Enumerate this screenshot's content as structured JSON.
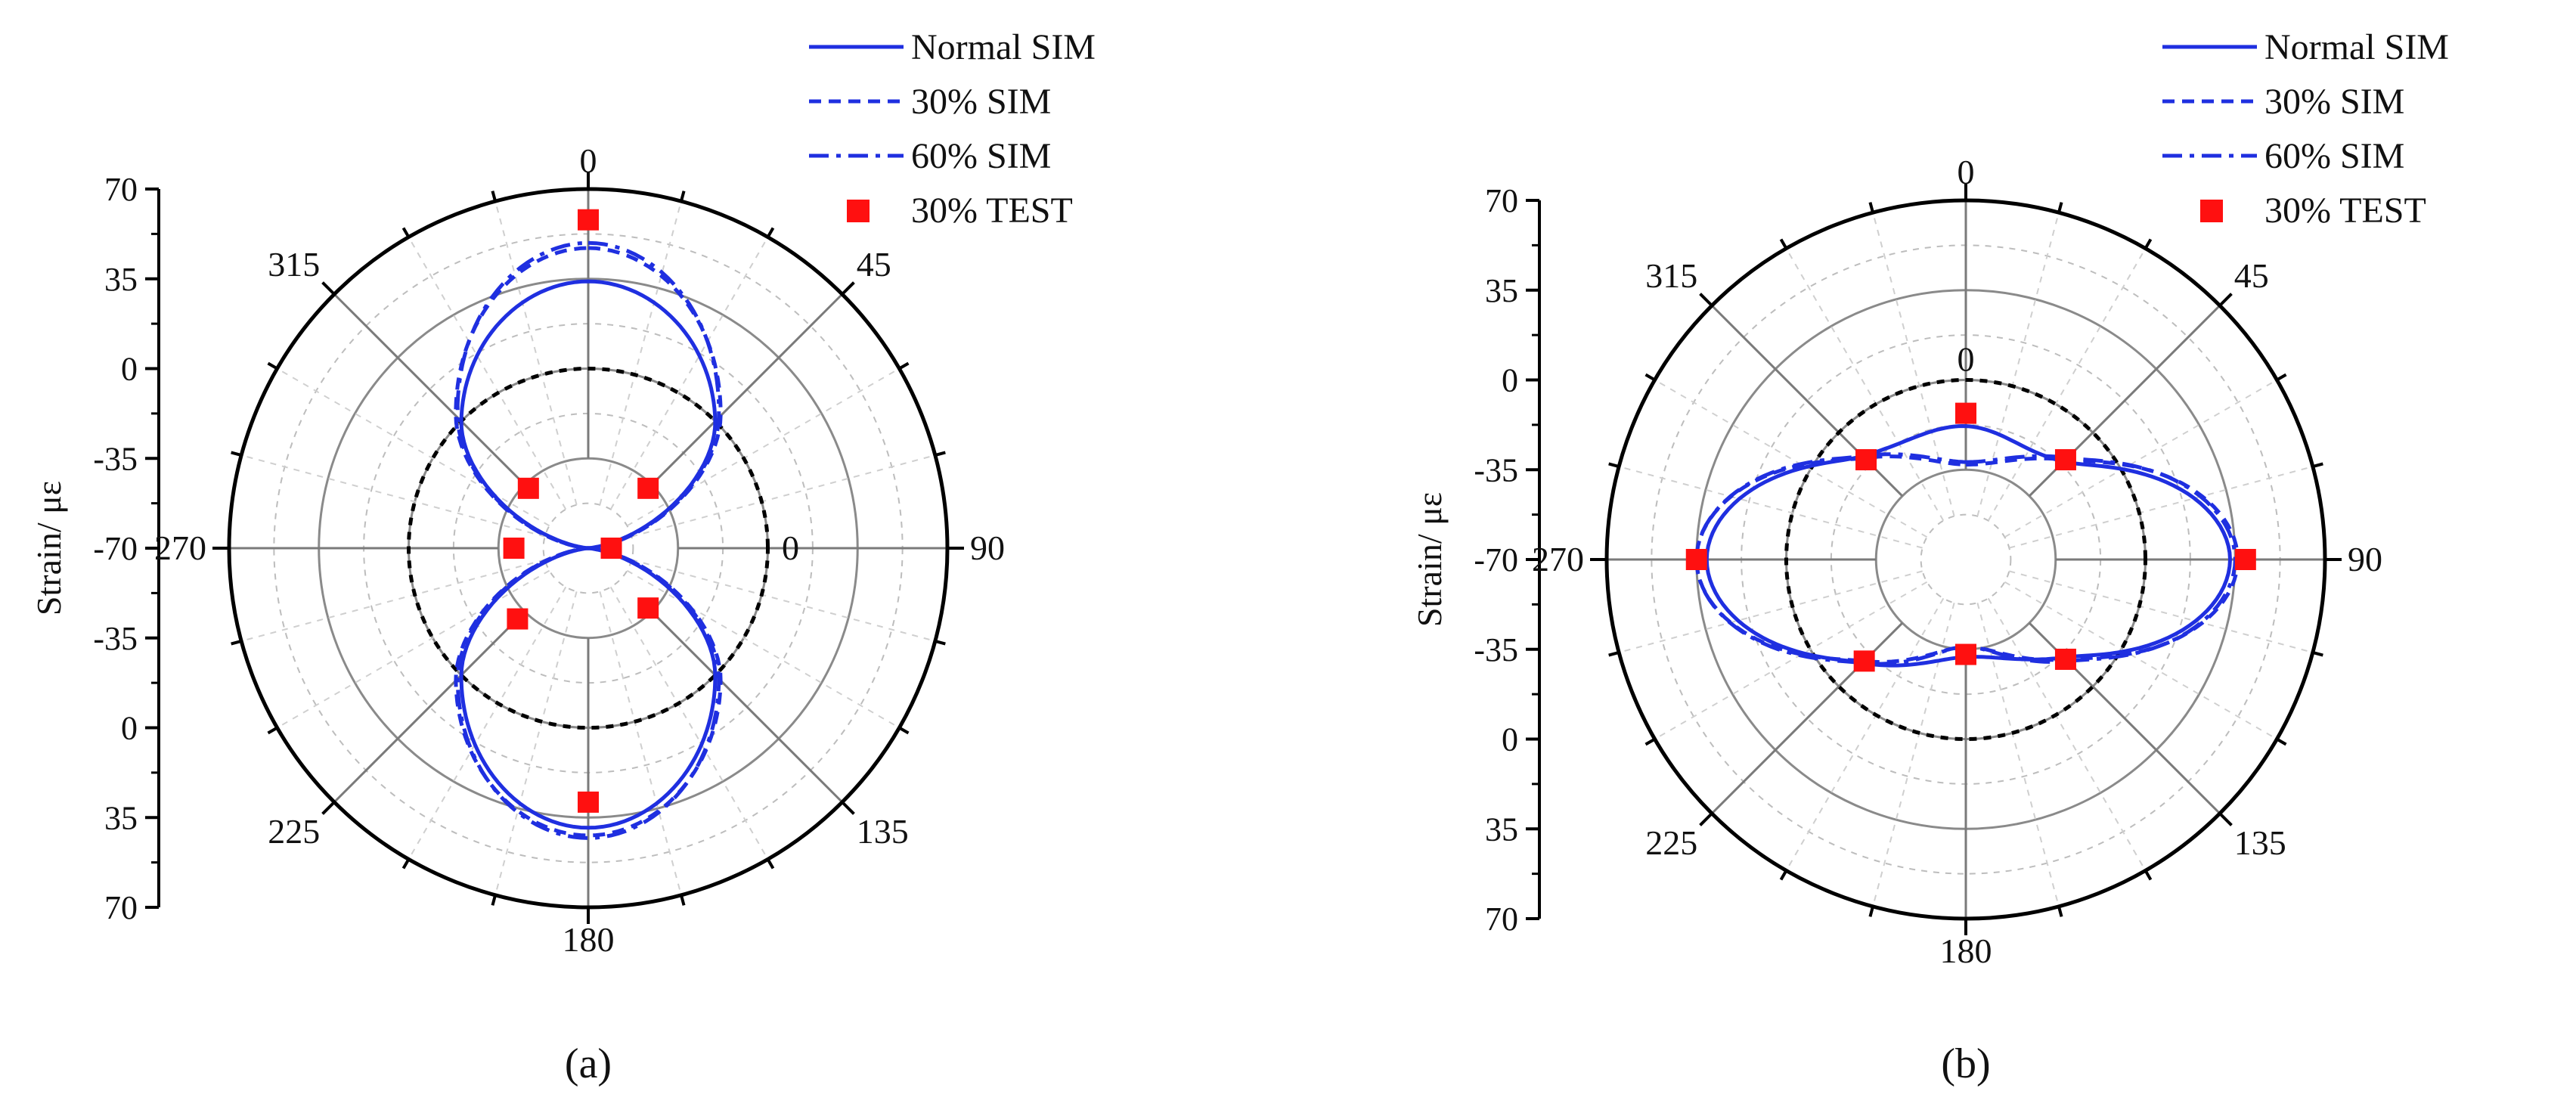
{
  "chart_data": [
    {
      "panel_label": "(a)",
      "type": "polar",
      "ylabel": "Strain/ με",
      "radial_tick_labels": [
        "70",
        "35",
        "0",
        "-35",
        "-70"
      ],
      "radial_range": [
        -70,
        70
      ],
      "angle_tick_labels": [
        {
          "angle": 0,
          "label": "0"
        },
        {
          "angle": 45,
          "label": "45"
        },
        {
          "angle": 90,
          "label": "90"
        },
        {
          "angle": 135,
          "label": "135"
        },
        {
          "angle": 180,
          "label": "180"
        },
        {
          "angle": 225,
          "label": "225"
        },
        {
          "angle": 270,
          "label": "270"
        },
        {
          "angle": 315,
          "label": "315"
        }
      ],
      "inner_zero_label": "0",
      "inner_zero_angle": 90,
      "legend": {
        "position": "top-right",
        "entries": [
          "Normal SIM",
          "30% SIM",
          "60% SIM",
          "30% TEST"
        ]
      },
      "series": [
        {
          "name": "Normal SIM",
          "style": "solid",
          "values_at": "every 45°",
          "values": [
            34,
            0,
            -72,
            0,
            39,
            0,
            -72,
            0
          ]
        },
        {
          "name": "30% SIM",
          "style": "dash",
          "values": [
            47,
            3,
            -70,
            3,
            42,
            3,
            -70,
            3
          ]
        },
        {
          "name": "60% SIM",
          "style": "dashdot",
          "values": [
            49,
            2,
            -70,
            2,
            43,
            2,
            -70,
            2
          ]
        },
        {
          "name": "30% TEST",
          "style": "square-marker",
          "points": [
            {
              "angle": 0,
              "value": 58
            },
            {
              "angle": 45,
              "value": -37
            },
            {
              "angle": 90,
              "value": -61
            },
            {
              "angle": 135,
              "value": -37
            },
            {
              "angle": 180,
              "value": 29
            },
            {
              "angle": 225,
              "value": -31
            },
            {
              "angle": 270,
              "value": -41
            },
            {
              "angle": 315,
              "value": -37
            }
          ]
        }
      ],
      "zero_circle": {
        "value": 0
      }
    },
    {
      "panel_label": "(b)",
      "type": "polar",
      "ylabel": "Strain/ με",
      "radial_tick_labels": [
        "70",
        "35",
        "0",
        "-35",
        "-70"
      ],
      "radial_range": [
        -70,
        70
      ],
      "angle_tick_labels": [
        {
          "angle": 0,
          "label": "0"
        },
        {
          "angle": 45,
          "label": "45"
        },
        {
          "angle": 90,
          "label": "90"
        },
        {
          "angle": 135,
          "label": "135"
        },
        {
          "angle": 180,
          "label": "180"
        },
        {
          "angle": 225,
          "label": "225"
        },
        {
          "angle": 270,
          "label": "270"
        },
        {
          "angle": 315,
          "label": "315"
        }
      ],
      "inner_zero_label": "0",
      "inner_zero_angle": 0,
      "legend": {
        "position": "top-right",
        "entries": [
          "Normal SIM",
          "30% SIM",
          "60% SIM",
          "30% TEST"
        ]
      },
      "series": [
        {
          "name": "Normal SIM",
          "style": "solid",
          "values_at": "every 45°",
          "values": [
            -18,
            -16,
            33,
            -16,
            -32,
            -13,
            31,
            -13
          ]
        },
        {
          "name": "30% SIM",
          "style": "dash",
          "values": [
            -33,
            -15,
            36,
            -15,
            -36,
            -14,
            35,
            -14
          ]
        },
        {
          "name": "60% SIM",
          "style": "dashdot",
          "values": [
            -32,
            -14,
            35,
            -14,
            -36,
            -13,
            35,
            -13
          ]
        },
        {
          "name": "30% TEST",
          "style": "square-marker",
          "points": [
            {
              "angle": 0,
              "value": -13
            },
            {
              "angle": 45,
              "value": -15
            },
            {
              "angle": 90,
              "value": 39
            },
            {
              "angle": 135,
              "value": -15
            },
            {
              "angle": 180,
              "value": -33
            },
            {
              "angle": 225,
              "value": -14
            },
            {
              "angle": 270,
              "value": 35
            },
            {
              "angle": 315,
              "value": -15
            }
          ]
        }
      ],
      "zero_circle": {
        "value": 0
      }
    }
  ]
}
